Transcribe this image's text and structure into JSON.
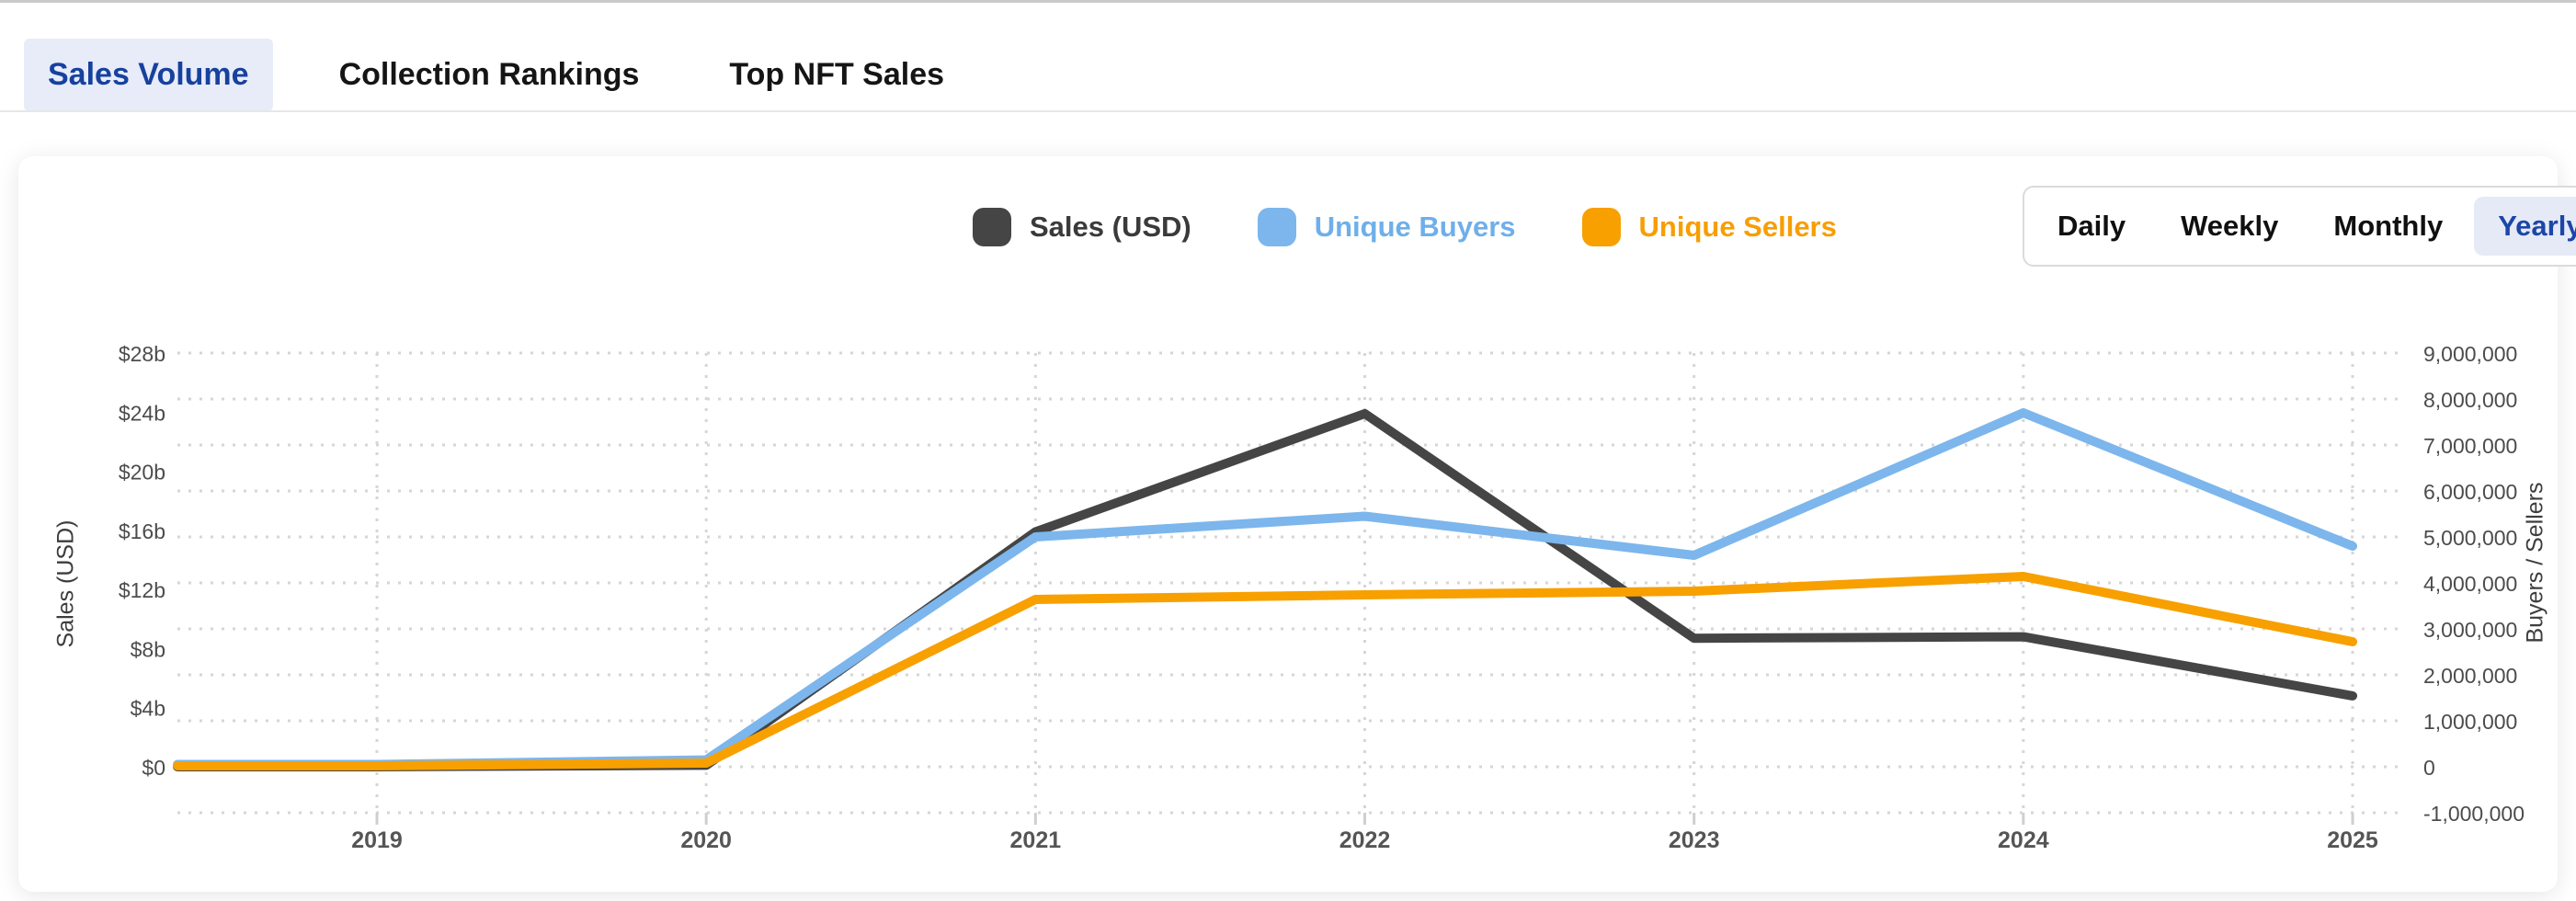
{
  "tabs": {
    "items": [
      {
        "label": "Sales Volume",
        "active": true
      },
      {
        "label": "Collection Rankings",
        "active": false
      },
      {
        "label": "Top NFT Sales",
        "active": false
      }
    ]
  },
  "legend": {
    "items": [
      {
        "label": "Sales (USD)",
        "swatch_color": "#454545",
        "text_color": "#3a3a3a"
      },
      {
        "label": "Unique Buyers",
        "swatch_color": "#7CB6EC",
        "text_color": "#6FAFE9"
      },
      {
        "label": "Unique Sellers",
        "swatch_color": "#F7A000",
        "text_color": "#F79E02"
      }
    ]
  },
  "period_selector": {
    "options": [
      "Daily",
      "Weekly",
      "Monthly",
      "Yearly"
    ],
    "selected": "Yearly"
  },
  "chart_data": {
    "type": "line",
    "x": [
      2019,
      2020,
      2021,
      2022,
      2023,
      2024,
      2025
    ],
    "series": [
      {
        "name": "Sales (USD)",
        "axis": "left",
        "color": "#454545",
        "unit": "billion USD",
        "values": [
          0,
          0.1,
          15.9,
          23.9,
          8.7,
          8.8,
          4.8
        ]
      },
      {
        "name": "Unique Buyers",
        "axis": "right",
        "color": "#7CB6EC",
        "unit": "count",
        "values": [
          50000,
          150000,
          5000000,
          5450000,
          4600000,
          7700000,
          4800000
        ]
      },
      {
        "name": "Unique Sellers",
        "axis": "right",
        "color": "#F7A000",
        "unit": "count",
        "values": [
          20000,
          80000,
          3640000,
          3740000,
          3820000,
          4140000,
          2720000
        ]
      }
    ],
    "left_axis": {
      "label": "Sales (USD)",
      "tick_values": [
        28,
        24,
        20,
        16,
        12,
        8,
        4,
        0
      ],
      "tick_labels": [
        "$28b",
        "$24b",
        "$20b",
        "$16b",
        "$12b",
        "$8b",
        "$4b",
        "$0"
      ],
      "range_billions": [
        0,
        28
      ]
    },
    "right_axis": {
      "label": "Buyers / Sellers",
      "tick_values": [
        9000000,
        8000000,
        7000000,
        6000000,
        5000000,
        4000000,
        3000000,
        2000000,
        1000000,
        0,
        -1000000
      ],
      "tick_labels": [
        "9,000,000",
        "8,000,000",
        "7,000,000",
        "6,000,000",
        "5,000,000",
        "4,000,000",
        "3,000,000",
        "2,000,000",
        "1,000,000",
        "0",
        "-1,000,000"
      ],
      "range": [
        -1000000,
        9000000
      ]
    },
    "x_tick_labels": [
      "2019",
      "2020",
      "2021",
      "2022",
      "2023",
      "2024",
      "2025"
    ],
    "grid": true,
    "grid_color": "#d6d6d6",
    "legend_position": "top",
    "title": ""
  }
}
